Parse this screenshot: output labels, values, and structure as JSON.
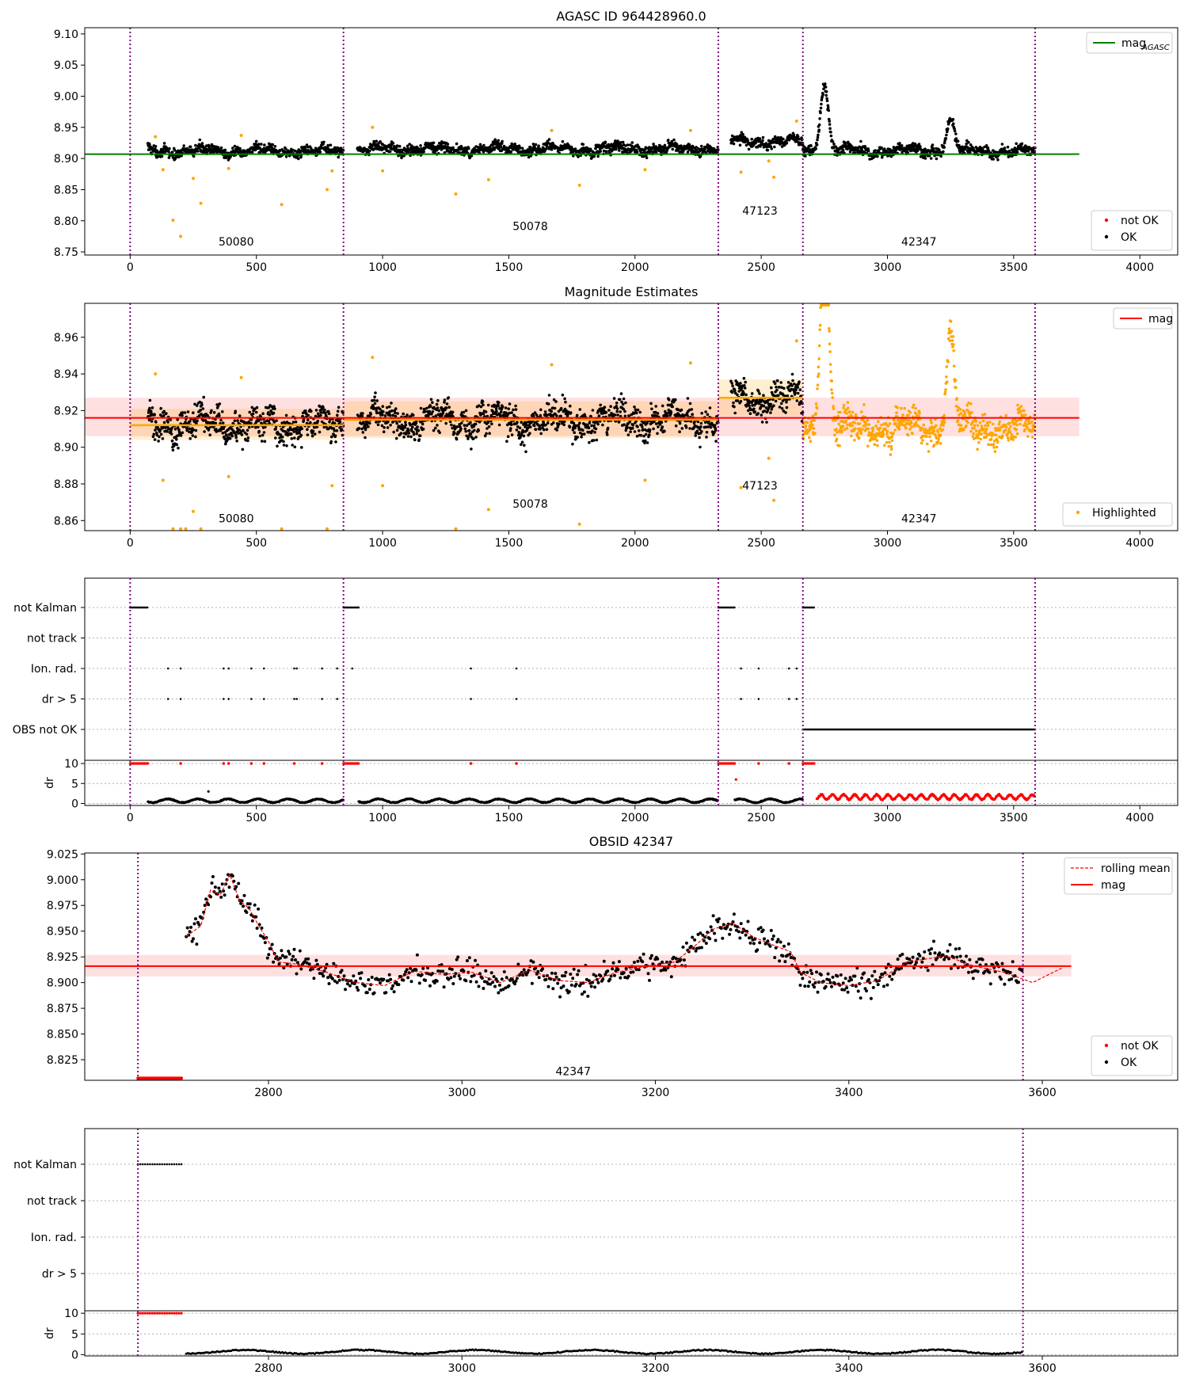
{
  "chart_data": [
    {
      "id": "p1",
      "type": "scatter",
      "title": "AGASC ID 964428960.0",
      "xlim": [
        -180,
        4150
      ],
      "ylim": [
        8.745,
        9.11
      ],
      "xticks": [
        0,
        500,
        1000,
        1500,
        2000,
        2500,
        3000,
        3500,
        4000
      ],
      "yticks": [
        8.75,
        8.8,
        8.85,
        8.9,
        8.95,
        9.0,
        9.05,
        9.1
      ],
      "ytick_decimals": 2,
      "obs_boundaries": [
        0,
        845,
        2330,
        2665,
        3585
      ],
      "obs_labels": [
        {
          "text": "50080",
          "x": 420,
          "y": 8.76
        },
        {
          "text": "50078",
          "x": 1585,
          "y": 8.785
        },
        {
          "text": "47123",
          "x": 2495,
          "y": 8.81
        },
        {
          "text": "42347",
          "x": 3125,
          "y": 8.76
        }
      ],
      "reference_line": {
        "name": "mag_AGASC",
        "y": 8.907,
        "x": [
          -180,
          3760
        ],
        "color": "#008000"
      },
      "legend_top": {
        "position": "top-right",
        "label": "mag",
        "sub": "AGASC"
      },
      "legend_bottom": {
        "position": "bottom-right",
        "entries": [
          {
            "label": "not OK",
            "color": "#ff0000"
          },
          {
            "label": "OK",
            "color": "#000000"
          }
        ]
      },
      "series": [
        {
          "name": "OK",
          "color": "#000000",
          "segments": [
            {
              "x0": 70,
              "x1": 845,
              "mean": 8.912,
              "noise": 0.008
            },
            {
              "x0": 900,
              "x1": 2330,
              "mean": 8.915,
              "noise": 0.008
            },
            {
              "x0": 2380,
              "x1": 2665,
              "mean": 8.927,
              "noise": 0.008
            },
            {
              "x0": 2665,
              "x1": 3585,
              "mean": 8.912,
              "noise": 0.008,
              "flare": [
                [
                  2750,
                  0.11
                ],
                [
                  3250,
                  0.05
                ]
              ]
            }
          ]
        },
        {
          "name": "highlighted",
          "color": "#ffa500",
          "points": [
            [
              100,
              8.935
            ],
            [
              130,
              8.882
            ],
            [
              170,
              8.801
            ],
            [
              200,
              8.775
            ],
            [
              250,
              8.868
            ],
            [
              280,
              8.828
            ],
            [
              390,
              8.884
            ],
            [
              440,
              8.937
            ],
            [
              600,
              8.826
            ],
            [
              780,
              8.85
            ],
            [
              800,
              8.88
            ],
            [
              960,
              8.95
            ],
            [
              1000,
              8.88
            ],
            [
              1290,
              8.843
            ],
            [
              1420,
              8.866
            ],
            [
              1670,
              8.945
            ],
            [
              1780,
              8.857
            ],
            [
              2040,
              8.882
            ],
            [
              2220,
              8.945
            ],
            [
              2420,
              8.878
            ],
            [
              2530,
              8.896
            ],
            [
              2550,
              8.87
            ],
            [
              2640,
              8.96
            ]
          ]
        }
      ]
    },
    {
      "id": "p2",
      "type": "scatter",
      "title": "Magnitude Estimates",
      "xlim": [
        -180,
        4150
      ],
      "ylim": [
        8.8545,
        8.9785
      ],
      "xticks": [
        0,
        500,
        1000,
        1500,
        2000,
        2500,
        3000,
        3500,
        4000
      ],
      "yticks": [
        8.86,
        8.88,
        8.9,
        8.92,
        8.94,
        8.96
      ],
      "ytick_decimals": 2,
      "obs_boundaries": [
        0,
        845,
        2330,
        2665,
        3585
      ],
      "obs_labels": [
        {
          "text": "50080",
          "x": 420,
          "y": 8.859
        },
        {
          "text": "50078",
          "x": 1585,
          "y": 8.867
        },
        {
          "text": "47123",
          "x": 2495,
          "y": 8.877
        },
        {
          "text": "42347",
          "x": 3125,
          "y": 8.859
        }
      ],
      "reference_line": {
        "name": "mag",
        "y": 8.916,
        "band": [
          8.906,
          8.927
        ],
        "x": [
          -180,
          3760
        ],
        "color": "#ff0000"
      },
      "obs_means": [
        {
          "x": [
            0,
            845
          ],
          "y": 8.912,
          "band": [
            8.904,
            8.921
          ]
        },
        {
          "x": [
            845,
            2330
          ],
          "y": 8.915,
          "band": [
            8.905,
            8.925
          ]
        },
        {
          "x": [
            2330,
            2665
          ],
          "y": 8.927,
          "band": [
            8.917,
            8.937
          ]
        }
      ],
      "legend_top": {
        "position": "top-right",
        "label": "mag"
      },
      "legend_bottom": {
        "position": "bottom-right",
        "entries": [
          {
            "label": "Highlighted",
            "color": "#ffa500"
          }
        ]
      },
      "series": [
        {
          "name": "OK",
          "color": "#000000",
          "segments": [
            {
              "x0": 70,
              "x1": 845,
              "mean": 8.912,
              "noise": 0.008
            },
            {
              "x0": 900,
              "x1": 2330,
              "mean": 8.915,
              "noise": 0.008
            },
            {
              "x0": 2380,
              "x1": 2665,
              "mean": 8.927,
              "noise": 0.008
            }
          ]
        },
        {
          "name": "Highlighted",
          "color": "#ffa500",
          "segments": [
            {
              "x0": 2665,
              "x1": 3585,
              "mean": 8.911,
              "noise": 0.008,
              "flare": [
                [
                  2750,
                  0.11
                ],
                [
                  3250,
                  0.05
                ]
              ]
            }
          ],
          "points": [
            [
              100,
              8.94
            ],
            [
              130,
              8.882
            ],
            [
              170,
              8.8555
            ],
            [
              200,
              8.8555
            ],
            [
              220,
              8.8555
            ],
            [
              250,
              8.865
            ],
            [
              280,
              8.8555
            ],
            [
              390,
              8.884
            ],
            [
              440,
              8.938
            ],
            [
              600,
              8.8555
            ],
            [
              780,
              8.8555
            ],
            [
              800,
              8.879
            ],
            [
              960,
              8.949
            ],
            [
              1000,
              8.879
            ],
            [
              1290,
              8.8555
            ],
            [
              1420,
              8.866
            ],
            [
              1670,
              8.945
            ],
            [
              1780,
              8.858
            ],
            [
              2040,
              8.882
            ],
            [
              2220,
              8.946
            ],
            [
              2420,
              8.878
            ],
            [
              2530,
              8.894
            ],
            [
              2550,
              8.871
            ],
            [
              2640,
              8.958
            ]
          ]
        }
      ]
    },
    {
      "id": "p3",
      "type": "scatter",
      "xlim": [
        -180,
        4150
      ],
      "xticks": [
        0,
        500,
        1000,
        1500,
        2000,
        2500,
        3000,
        3500,
        4000
      ],
      "obs_boundaries": [
        0,
        845,
        2330,
        2665,
        3585
      ],
      "flags": [
        "not Kalman",
        "not track",
        "Ion. rad.",
        "dr > 5",
        "OBS not OK"
      ],
      "flag_points": {
        "not Kalman": [
          [
            0,
            70
          ],
          [
            845,
            905
          ],
          [
            2330,
            2395
          ],
          [
            2665,
            2710
          ]
        ],
        "not track": [],
        "Ion. rad.": [
          150,
          200,
          370,
          390,
          480,
          530,
          650,
          660,
          760,
          820,
          880,
          1350,
          1530,
          2420,
          2490,
          2610,
          2640
        ],
        "dr > 5": [
          150,
          200,
          370,
          390,
          480,
          530,
          650,
          660,
          760,
          820,
          1350,
          1530,
          2420,
          2490,
          2610,
          2640
        ],
        "OBS not OK": [
          [
            2665,
            3585
          ]
        ]
      },
      "dr": {
        "ylim": [
          -0.5,
          10.8
        ],
        "yticks": [
          0,
          5,
          10
        ],
        "ylabel": "dr",
        "clip_level": 10,
        "clipped_red": [
          [
            0,
            70
          ],
          [
            845,
            905
          ],
          [
            2330,
            2395
          ],
          [
            2665,
            2710
          ]
        ],
        "clipped_red_points": [
          200,
          370,
          390,
          480,
          530,
          650,
          760,
          1350,
          1530,
          2490,
          2610
        ],
        "black_segments": [
          [
            70,
            845
          ],
          [
            905,
            2330
          ],
          [
            2395,
            2665
          ]
        ],
        "red_segment": [
          2720,
          3585
        ],
        "outliers": [
          [
            310,
            3
          ],
          [
            2400,
            6
          ]
        ]
      }
    },
    {
      "id": "p4",
      "type": "scatter",
      "title": "OBSID 42347",
      "xlim": [
        2610,
        3740
      ],
      "ylim": [
        8.805,
        9.026
      ],
      "xticks": [
        2800,
        3000,
        3200,
        3400,
        3600
      ],
      "yticks": [
        8.825,
        8.85,
        8.875,
        8.9,
        8.925,
        8.95,
        8.975,
        9.0,
        9.025
      ],
      "ytick_decimals": 3,
      "obs_boundaries": [
        2665,
        3580
      ],
      "obs_labels": [
        {
          "text": "42347",
          "x": 3115,
          "y": 8.81
        }
      ],
      "reference_line": {
        "name": "mag",
        "y": 8.916,
        "band": [
          8.906,
          8.927
        ],
        "x": [
          2610,
          3630
        ],
        "color": "#ff0000"
      },
      "legend_top": {
        "position": "top-right",
        "entries": [
          {
            "label": "rolling mean",
            "style": "dashed",
            "color": "#ff0000"
          },
          {
            "label": "mag",
            "style": "solid",
            "color": "#ff0000"
          }
        ]
      },
      "legend_bottom": {
        "position": "bottom-right",
        "entries": [
          {
            "label": "not OK",
            "color": "#ff0000"
          },
          {
            "label": "OK",
            "color": "#000000"
          }
        ]
      },
      "not_ok_range": [
        2665,
        2710
      ],
      "not_ok_y": 8.807,
      "rolling_mean": [
        [
          2715,
          8.945
        ],
        [
          2730,
          8.955
        ],
        [
          2740,
          8.99
        ],
        [
          2750,
          8.985
        ],
        [
          2760,
          9.005
        ],
        [
          2770,
          8.98
        ],
        [
          2780,
          8.972
        ],
        [
          2790,
          8.955
        ],
        [
          2800,
          8.94
        ],
        [
          2810,
          8.92
        ],
        [
          2830,
          8.918
        ],
        [
          2860,
          8.91
        ],
        [
          2890,
          8.9
        ],
        [
          2920,
          8.897
        ],
        [
          2950,
          8.911
        ],
        [
          2980,
          8.908
        ],
        [
          3010,
          8.91
        ],
        [
          3040,
          8.9
        ],
        [
          3070,
          8.912
        ],
        [
          3100,
          8.902
        ],
        [
          3130,
          8.9
        ],
        [
          3160,
          8.91
        ],
        [
          3190,
          8.916
        ],
        [
          3220,
          8.92
        ],
        [
          3240,
          8.935
        ],
        [
          3260,
          8.952
        ],
        [
          3280,
          8.958
        ],
        [
          3300,
          8.945
        ],
        [
          3320,
          8.937
        ],
        [
          3340,
          8.93
        ],
        [
          3350,
          8.91
        ],
        [
          3370,
          8.9
        ],
        [
          3400,
          8.897
        ],
        [
          3430,
          8.902
        ],
        [
          3460,
          8.92
        ],
        [
          3500,
          8.926
        ],
        [
          3530,
          8.916
        ],
        [
          3560,
          8.91
        ],
        [
          3590,
          8.9
        ],
        [
          3620,
          8.914
        ]
      ],
      "ok_noise": 0.012
    },
    {
      "id": "p5",
      "type": "scatter",
      "xlim": [
        2610,
        3740
      ],
      "xticks": [
        2800,
        3000,
        3200,
        3400,
        3600
      ],
      "obs_boundaries": [
        2665,
        3580
      ],
      "flags": [
        "not Kalman",
        "not track",
        "Ion. rad.",
        "dr > 5"
      ],
      "flag_points": {
        "not Kalman": [
          [
            2665,
            2710
          ]
        ],
        "not track": [],
        "Ion. rad.": [],
        "dr > 5": []
      },
      "dr": {
        "ylim": [
          -0.3,
          10.6
        ],
        "yticks": [
          0,
          5,
          10
        ],
        "ylabel": "dr",
        "clip_level": 10,
        "clipped_red": [
          [
            2665,
            2710
          ]
        ],
        "clipped_red_points": [],
        "black_segments": [
          [
            2715,
            3580
          ]
        ],
        "red_segment": null,
        "outliers": []
      }
    }
  ]
}
